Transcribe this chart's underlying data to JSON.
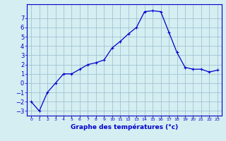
{
  "hours": [
    0,
    1,
    2,
    3,
    4,
    5,
    6,
    7,
    8,
    9,
    10,
    11,
    12,
    13,
    14,
    15,
    16,
    17,
    18,
    19,
    20,
    21,
    22,
    23
  ],
  "temps": [
    -2.0,
    -3.0,
    -1.0,
    0.0,
    1.0,
    1.0,
    1.5,
    2.0,
    2.2,
    2.5,
    3.8,
    4.5,
    5.3,
    6.0,
    7.7,
    7.8,
    7.7,
    5.5,
    3.3,
    1.7,
    1.5,
    1.5,
    1.2,
    1.4
  ],
  "xlabel": "Graphe des températures (°c)",
  "ylim": [
    -3.5,
    8.5
  ],
  "xlim": [
    -0.5,
    23.5
  ],
  "line_color": "#0000cc",
  "marker": "+",
  "bg_color": "#d4eef2",
  "grid_color": "#99bbcc",
  "xlabel_color": "#0000cc",
  "yticks": [
    -3,
    -2,
    -1,
    0,
    1,
    2,
    3,
    4,
    5,
    6,
    7
  ],
  "xtick_labels": [
    "0",
    "1",
    "2",
    "3",
    "4",
    "5",
    "6",
    "7",
    "8",
    "9",
    "10",
    "11",
    "12",
    "13",
    "14",
    "15",
    "16",
    "17",
    "18",
    "19",
    "20",
    "21",
    "22",
    "23"
  ]
}
